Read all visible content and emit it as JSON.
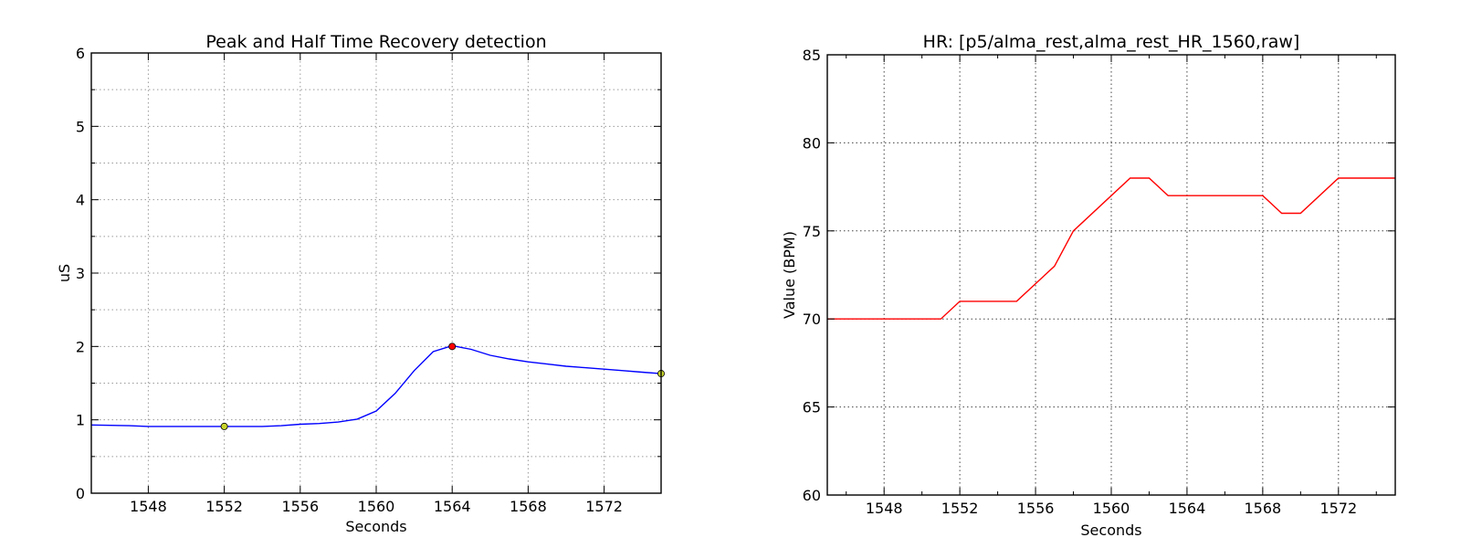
{
  "chart_data": [
    {
      "type": "line",
      "title": "Peak and Half Time Recovery detection",
      "xlabel": "Seconds",
      "ylabel": "uS",
      "xlim": [
        1545,
        1575
      ],
      "ylim": [
        0,
        6
      ],
      "x_ticks": [
        1548,
        1552,
        1556,
        1560,
        1564,
        1568,
        1572
      ],
      "y_ticks": [
        0,
        1,
        2,
        3,
        4,
        5,
        6
      ],
      "y_minor": [
        0.5,
        1.5,
        2.5,
        3.5,
        4.5,
        5.5
      ],
      "grid": true,
      "series": [
        {
          "color": "#0000ff",
          "points": [
            [
              1545,
              0.93
            ],
            [
              1547,
              0.92
            ],
            [
              1548,
              0.91
            ],
            [
              1550,
              0.91
            ],
            [
              1552,
              0.91
            ],
            [
              1554,
              0.91
            ],
            [
              1555,
              0.92
            ],
            [
              1556,
              0.94
            ],
            [
              1557,
              0.95
            ],
            [
              1558,
              0.97
            ],
            [
              1559,
              1.01
            ],
            [
              1560,
              1.12
            ],
            [
              1561,
              1.36
            ],
            [
              1562,
              1.67
            ],
            [
              1563,
              1.93
            ],
            [
              1564,
              2.01
            ],
            [
              1565,
              1.96
            ],
            [
              1566,
              1.88
            ],
            [
              1567,
              1.83
            ],
            [
              1568,
              1.79
            ],
            [
              1569,
              1.76
            ],
            [
              1570,
              1.73
            ],
            [
              1571,
              1.71
            ],
            [
              1572,
              1.69
            ],
            [
              1573,
              1.67
            ],
            [
              1574,
              1.65
            ],
            [
              1575,
              1.63
            ]
          ]
        }
      ],
      "markers": [
        {
          "x": 1552,
          "y": 0.91,
          "color": "#c8d42a"
        },
        {
          "x": 1564,
          "y": 2.0,
          "color": "#ff0000"
        },
        {
          "x": 1575,
          "y": 1.63,
          "color": "#c8d42a"
        }
      ]
    },
    {
      "type": "line",
      "title": "HR: [p5/alma_rest,alma_rest_HR_1560,raw]",
      "xlabel": "Seconds",
      "ylabel": "Value (BPM)",
      "xlim": [
        1545,
        1575
      ],
      "ylim": [
        60,
        85
      ],
      "x_ticks": [
        1548,
        1552,
        1556,
        1560,
        1564,
        1568,
        1572
      ],
      "y_ticks": [
        60,
        65,
        70,
        75,
        80,
        85
      ],
      "x_minor": [
        1546,
        1550,
        1554,
        1558,
        1562,
        1566,
        1570,
        1574
      ],
      "grid": true,
      "series": [
        {
          "color": "#ff0000",
          "points": [
            [
              1545,
              70
            ],
            [
              1551,
              70
            ],
            [
              1552,
              71
            ],
            [
              1555,
              71
            ],
            [
              1557,
              73
            ],
            [
              1558,
              75
            ],
            [
              1561,
              78
            ],
            [
              1562,
              78
            ],
            [
              1563,
              77
            ],
            [
              1568,
              77
            ],
            [
              1569,
              76
            ],
            [
              1570,
              76
            ],
            [
              1572,
              78
            ],
            [
              1575,
              78
            ]
          ]
        }
      ]
    }
  ]
}
